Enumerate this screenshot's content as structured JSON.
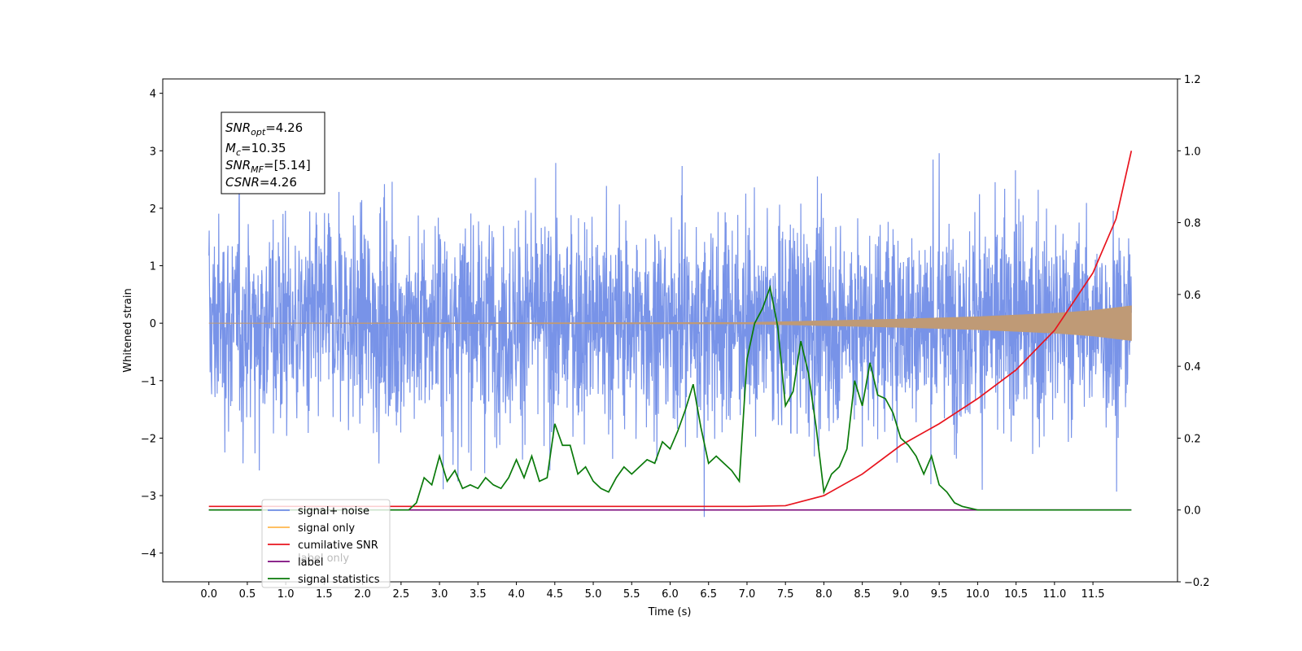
{
  "chart_data": {
    "type": "line",
    "xlabel": "Time (s)",
    "ylabel": "Whitened strain",
    "xlim": [
      -0.6,
      12.6
    ],
    "ylim": [
      -4.5,
      4.25
    ],
    "y2lim": [
      -0.2,
      1.2
    ],
    "x_ticks": [
      "0.0",
      "0.5",
      "1.0",
      "1.5",
      "2.0",
      "2.5",
      "3.0",
      "3.5",
      "4.0",
      "4.5",
      "5.0",
      "5.5",
      "6.0",
      "6.5",
      "7.0",
      "7.5",
      "8.0",
      "8.5",
      "9.0",
      "9.5",
      "10.0",
      "10.5",
      "11.0",
      "11.5"
    ],
    "y_ticks": [
      "4",
      "3",
      "2",
      "1",
      "0",
      "−1",
      "−2",
      "−3",
      "−4"
    ],
    "y2_ticks": [
      "1.2",
      "1.0",
      "0.8",
      "0.6",
      "0.4",
      "0.2",
      "0.0",
      "−0.2"
    ],
    "info_box": {
      "snr_opt_main": "SNR",
      "snr_opt_sub": "opt",
      "snr_opt_value": "=4.26",
      "mc_main": "M",
      "mc_sub": "c",
      "mc_value": "=10.35",
      "snr_mf_main": "SNR",
      "snr_mf_sub": "MF",
      "snr_mf_value": "=[5.14]",
      "csnr_main": "CSNR",
      "csnr_value": "=4.26"
    },
    "legend_placement": "lower-left",
    "legend": [
      {
        "label": "signal+ noise",
        "color": "#6f8ee6"
      },
      {
        "label": "signal only",
        "color": "#ffb74d"
      },
      {
        "label": "cumilative SNR",
        "color": "#e8141e"
      },
      {
        "label": "label",
        "color": "#7b0a7b"
      },
      {
        "label": "signal statistics",
        "color": "#0a7a0a"
      }
    ],
    "hidden_legend_text": "label only",
    "series": [
      {
        "name": "signal+ noise",
        "axis": "left",
        "color": "#7893e8",
        "t_start": 0.0,
        "t_end": 12.0,
        "envelope_upper_typical": 1.5,
        "envelope_lower_typical": -1.6,
        "max": 3.85,
        "min": -4.1
      },
      {
        "name": "signal only",
        "axis": "left",
        "color": "#bf9a76",
        "amplitude": {
          "x": [
            0,
            7.0,
            8.0,
            9.0,
            10.0,
            11.0,
            11.5,
            12.0
          ],
          "y": [
            0.0,
            0.01,
            0.04,
            0.07,
            0.11,
            0.17,
            0.22,
            0.3
          ]
        }
      },
      {
        "name": "cumilative SNR",
        "axis": "right",
        "color": "#e8141e",
        "x": [
          0,
          7.0,
          7.5,
          8.0,
          8.5,
          9.0,
          9.5,
          10.0,
          10.5,
          11.0,
          11.5,
          11.8,
          12.0
        ],
        "y": [
          0.01,
          0.01,
          0.012,
          0.04,
          0.1,
          0.18,
          0.24,
          0.31,
          0.39,
          0.5,
          0.66,
          0.81,
          1.0
        ]
      },
      {
        "name": "label",
        "axis": "right",
        "color": "#7b0a7b",
        "x": [
          0,
          12.0
        ],
        "y": [
          0.0,
          0.0
        ]
      },
      {
        "name": "signal statistics",
        "axis": "right",
        "color": "#0a7a0a",
        "x": [
          0,
          2.6,
          2.7,
          2.8,
          2.9,
          3.0,
          3.1,
          3.2,
          3.3,
          3.4,
          3.5,
          3.6,
          3.7,
          3.8,
          3.9,
          4.0,
          4.1,
          4.2,
          4.3,
          4.4,
          4.5,
          4.6,
          4.7,
          4.8,
          4.9,
          5.0,
          5.1,
          5.2,
          5.3,
          5.4,
          5.5,
          5.6,
          5.7,
          5.8,
          5.9,
          6.0,
          6.1,
          6.2,
          6.3,
          6.4,
          6.5,
          6.6,
          6.7,
          6.8,
          6.9,
          7.0,
          7.1,
          7.2,
          7.3,
          7.4,
          7.5,
          7.6,
          7.7,
          7.8,
          7.9,
          8.0,
          8.1,
          8.2,
          8.3,
          8.4,
          8.5,
          8.6,
          8.7,
          8.8,
          8.9,
          9.0,
          9.1,
          9.2,
          9.3,
          9.4,
          9.5,
          9.6,
          9.7,
          9.8,
          9.9,
          10.0,
          10.5,
          12.0
        ],
        "y": [
          0.0,
          0.0,
          0.02,
          0.09,
          0.07,
          0.15,
          0.08,
          0.11,
          0.06,
          0.07,
          0.06,
          0.09,
          0.07,
          0.06,
          0.09,
          0.14,
          0.09,
          0.15,
          0.08,
          0.09,
          0.24,
          0.18,
          0.18,
          0.1,
          0.12,
          0.08,
          0.06,
          0.05,
          0.09,
          0.12,
          0.1,
          0.12,
          0.14,
          0.13,
          0.19,
          0.17,
          0.22,
          0.28,
          0.35,
          0.23,
          0.13,
          0.15,
          0.13,
          0.11,
          0.08,
          0.42,
          0.52,
          0.56,
          0.62,
          0.51,
          0.29,
          0.33,
          0.47,
          0.38,
          0.23,
          0.05,
          0.1,
          0.12,
          0.17,
          0.36,
          0.29,
          0.41,
          0.32,
          0.31,
          0.27,
          0.2,
          0.18,
          0.15,
          0.1,
          0.15,
          0.07,
          0.05,
          0.02,
          0.01,
          0.005,
          0.0,
          0.0,
          0.0
        ]
      }
    ]
  }
}
